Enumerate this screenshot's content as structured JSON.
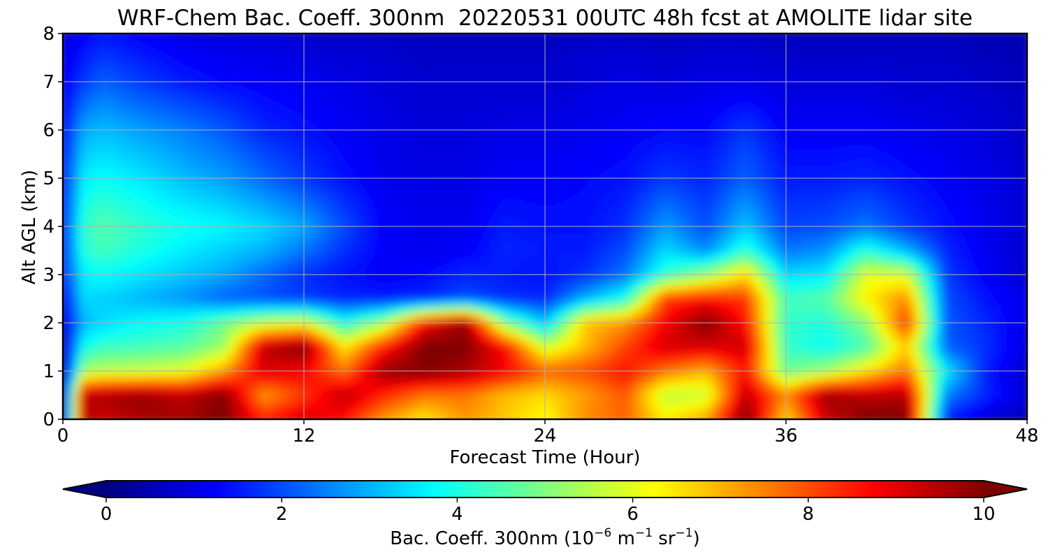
{
  "chart_data": {
    "type": "heatmap",
    "title": "WRF-Chem Bac. Coeff. 300nm  20220531 00UTC 48h fcst at AMOLITE lidar site",
    "xlabel": "Forecast Time (Hour)",
    "ylabel": "Alt AGL (km)",
    "xlim": [
      0,
      48
    ],
    "ylim": [
      0,
      8
    ],
    "x_ticks": [
      "0",
      "12",
      "24",
      "36",
      "48"
    ],
    "y_ticks": [
      "0",
      "1",
      "2",
      "3",
      "4",
      "5",
      "6",
      "7",
      "8"
    ],
    "grid": true,
    "colormap": "jet",
    "colorbar": {
      "orientation": "horizontal",
      "position": "bottom",
      "extend": "both",
      "range": [
        0,
        10
      ],
      "ticks": [
        "0",
        "2",
        "4",
        "6",
        "8",
        "10"
      ],
      "label_prefix": "Bac. Coeff. 300nm  (10",
      "label_exp1": "−6",
      "label_mid": " m",
      "label_exp2": "−1",
      "label_mid2": " sr",
      "label_exp3": "−1",
      "label_suffix": ")"
    },
    "x_hours": [
      0,
      1,
      2,
      4,
      6,
      8,
      10,
      12,
      14,
      16,
      18,
      20,
      22,
      24,
      26,
      28,
      30,
      32,
      34,
      36,
      38,
      40,
      42,
      44,
      46,
      48
    ],
    "z_km": [
      0,
      0.5,
      1,
      1.5,
      2,
      2.5,
      3,
      3.5,
      4,
      5,
      6,
      7,
      8
    ],
    "values": [
      [
        0.4,
        9.5,
        9.2,
        9.6,
        9.6,
        10.0,
        8.5,
        9.2,
        8.6,
        7.2,
        6.4,
        7.3,
        6.8,
        6.2,
        7.4,
        7.8,
        6.4,
        7.2,
        10.0,
        6.6,
        9.2,
        10.0,
        10.0,
        1.5,
        0.8,
        0.6
      ],
      [
        0.3,
        9.4,
        9.6,
        9.8,
        9.4,
        10.0,
        7.2,
        8.2,
        9.4,
        8.4,
        7.6,
        7.6,
        6.9,
        6.6,
        7.2,
        7.9,
        5.6,
        5.7,
        9.4,
        7.4,
        9.8,
        9.4,
        9.5,
        2.5,
        1.6,
        0.8
      ],
      [
        0.3,
        5.3,
        5.6,
        5.7,
        6.0,
        7.2,
        9.1,
        8.8,
        7.6,
        9.8,
        10.0,
        9.6,
        8.8,
        7.8,
        8.0,
        8.6,
        7.6,
        7.0,
        8.6,
        4.8,
        5.3,
        6.5,
        7.6,
        3.6,
        1.5,
        0.8
      ],
      [
        0.5,
        3.9,
        4.3,
        4.4,
        4.6,
        5.3,
        9.4,
        10.0,
        6.4,
        8.5,
        10.0,
        10.0,
        8.7,
        5.8,
        6.9,
        8.1,
        9.2,
        9.1,
        9.2,
        4.3,
        3.8,
        4.5,
        6.8,
        2.2,
        1.7,
        0.9
      ],
      [
        0.7,
        3.0,
        3.4,
        3.8,
        4.0,
        4.8,
        5.7,
        6.0,
        4.0,
        5.4,
        8.7,
        9.8,
        5.0,
        3.2,
        6.8,
        7.3,
        8.8,
        10.0,
        8.6,
        4.2,
        4.1,
        5.1,
        8.3,
        2.1,
        1.6,
        1.0
      ],
      [
        1.1,
        3.4,
        3.3,
        3.0,
        2.7,
        2.2,
        2.0,
        1.8,
        1.6,
        1.5,
        1.6,
        2.0,
        1.7,
        1.6,
        3.0,
        4.0,
        8.2,
        8.6,
        8.2,
        4.4,
        4.6,
        6.4,
        7.4,
        2.0,
        1.4,
        1.0
      ],
      [
        1.6,
        3.6,
        3.8,
        3.5,
        3.2,
        2.9,
        2.3,
        1.7,
        1.4,
        1.2,
        1.3,
        1.6,
        1.5,
        1.4,
        1.7,
        2.4,
        4.2,
        5.2,
        6.6,
        3.4,
        3.6,
        6.0,
        5.9,
        1.8,
        1.2,
        0.8
      ],
      [
        1.6,
        4.1,
        4.4,
        4.0,
        3.6,
        3.3,
        3.0,
        2.4,
        1.7,
        1.2,
        1.1,
        1.2,
        1.6,
        1.5,
        1.5,
        2.0,
        3.4,
        2.6,
        4.2,
        2.4,
        2.7,
        4.1,
        3.0,
        1.6,
        1.1,
        0.8
      ],
      [
        1.5,
        4.2,
        4.6,
        4.2,
        3.9,
        3.7,
        3.4,
        2.9,
        2.0,
        1.2,
        1.1,
        1.1,
        1.5,
        1.4,
        1.4,
        1.7,
        2.8,
        2.0,
        3.2,
        1.9,
        2.0,
        2.4,
        1.8,
        1.4,
        1.1,
        0.8
      ],
      [
        1.5,
        3.6,
        3.8,
        3.5,
        3.1,
        2.8,
        2.3,
        1.8,
        1.4,
        1.1,
        1.0,
        1.0,
        1.2,
        1.2,
        1.3,
        1.4,
        1.8,
        1.6,
        2.2,
        1.5,
        1.5,
        1.6,
        1.4,
        1.2,
        1.0,
        0.8
      ],
      [
        1.3,
        2.9,
        3.1,
        2.8,
        2.5,
        2.1,
        1.6,
        1.4,
        1.2,
        1.0,
        0.9,
        0.9,
        1.0,
        1.0,
        1.1,
        1.2,
        1.3,
        1.3,
        1.8,
        1.2,
        1.2,
        1.2,
        1.1,
        1.0,
        0.9,
        0.7
      ],
      [
        1.1,
        1.8,
        2.2,
        1.8,
        1.5,
        1.3,
        1.2,
        1.1,
        1.0,
        0.9,
        0.8,
        0.8,
        0.8,
        0.8,
        0.9,
        1.0,
        0.9,
        1.0,
        1.0,
        0.9,
        0.9,
        0.9,
        0.8,
        0.8,
        0.7,
        0.6
      ],
      [
        0.9,
        1.2,
        1.4,
        1.2,
        1.0,
        0.9,
        0.9,
        0.8,
        0.7,
        0.7,
        0.6,
        0.6,
        0.6,
        0.6,
        0.7,
        0.7,
        0.6,
        0.7,
        0.7,
        0.6,
        0.6,
        0.6,
        0.6,
        0.6,
        0.5,
        0.5
      ]
    ]
  }
}
